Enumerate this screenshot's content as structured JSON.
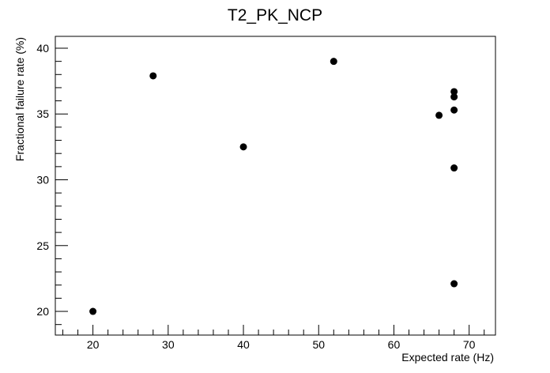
{
  "chart_data": {
    "type": "scatter",
    "title": "T2_PK_NCP",
    "xlabel": "Expected rate (Hz)",
    "ylabel": "Fractional failure rate (%)",
    "xlim": [
      15,
      73.5
    ],
    "ylim": [
      18.2,
      40.9
    ],
    "x_ticks": [
      20,
      30,
      40,
      50,
      60,
      70
    ],
    "y_ticks": [
      20,
      25,
      30,
      35,
      40
    ],
    "x_tick_labels": [
      "20",
      "30",
      "40",
      "50",
      "60",
      "70"
    ],
    "y_tick_labels": [
      "20",
      "25",
      "30",
      "35",
      "40"
    ],
    "grid": false,
    "legend": false,
    "marker_color": "#000000",
    "points": [
      {
        "x": 20,
        "y": 20.0
      },
      {
        "x": 28,
        "y": 37.9
      },
      {
        "x": 40,
        "y": 32.5
      },
      {
        "x": 52,
        "y": 39.0
      },
      {
        "x": 66,
        "y": 34.9
      },
      {
        "x": 68,
        "y": 36.7
      },
      {
        "x": 68,
        "y": 36.3
      },
      {
        "x": 68,
        "y": 35.3
      },
      {
        "x": 68,
        "y": 30.9
      },
      {
        "x": 68,
        "y": 22.1
      }
    ]
  }
}
